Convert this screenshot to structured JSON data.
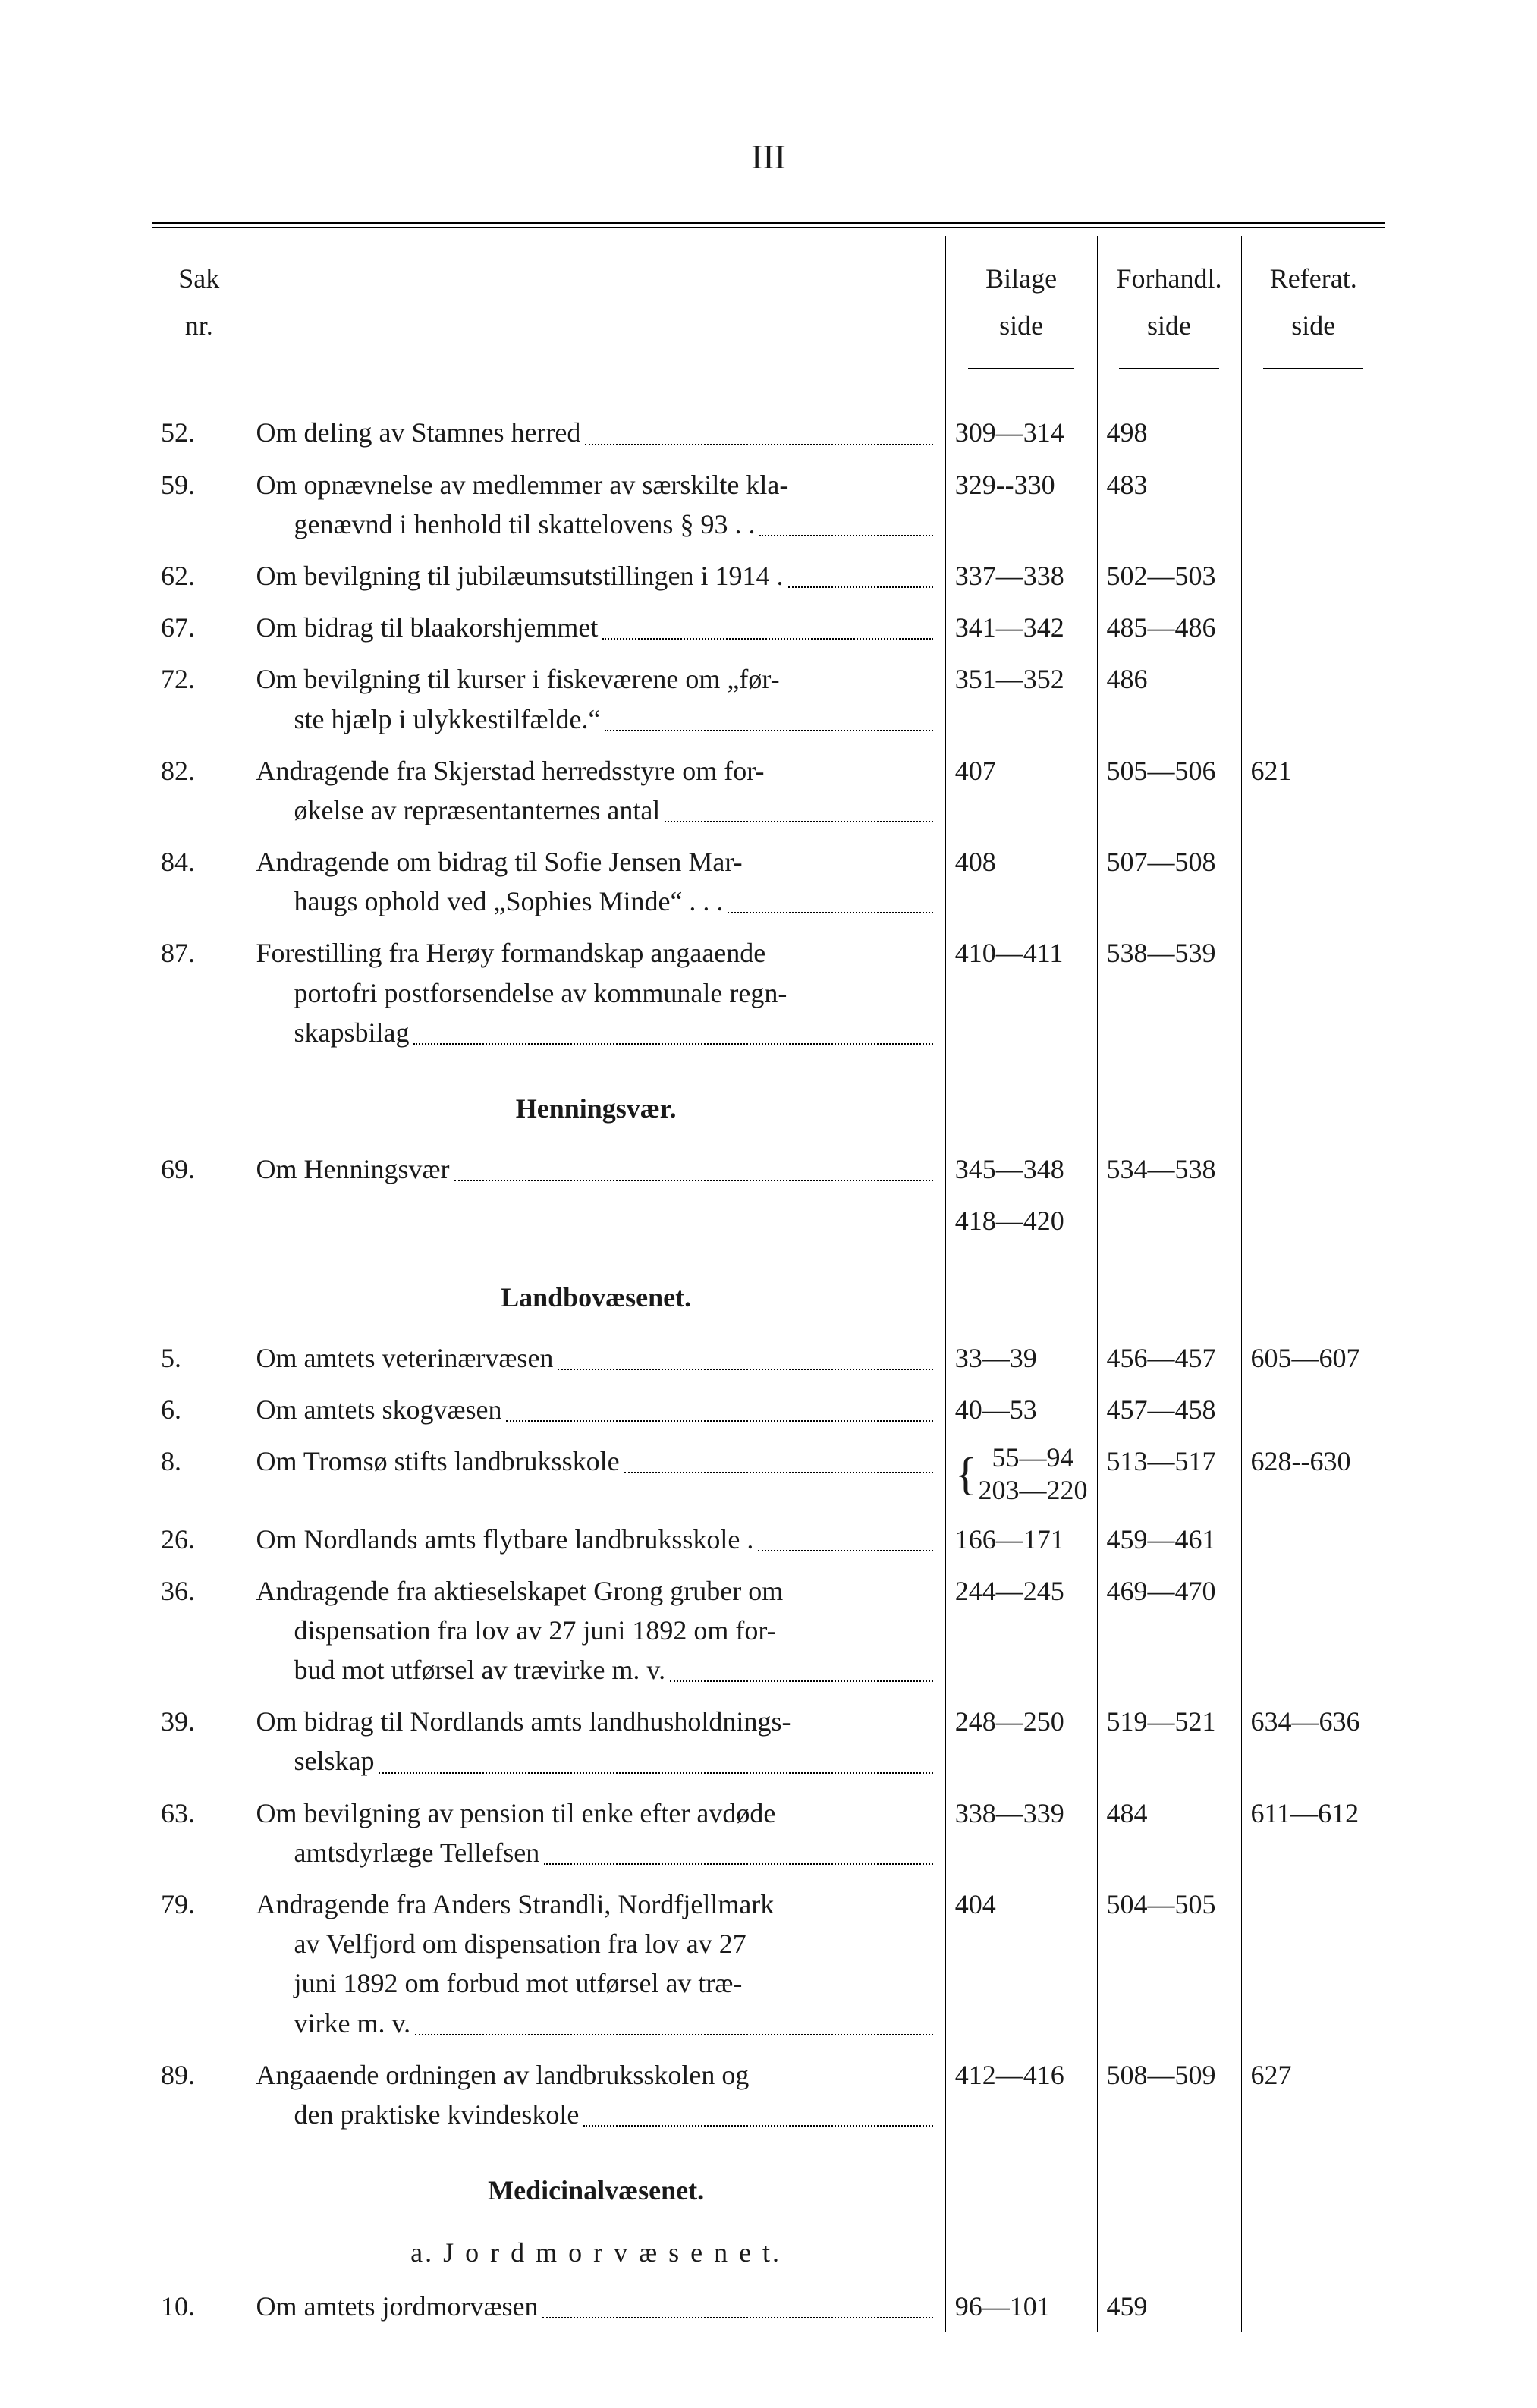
{
  "page_number": "III",
  "columns": {
    "sak": "Sak",
    "nr": "nr.",
    "bilage": "Bilage",
    "bilage_sub": "side",
    "forhandl": "Forhandl.",
    "forhandl_sub": "side",
    "referat": "Referat.",
    "referat_sub": "side"
  },
  "sections": [
    {
      "heading": null,
      "rows": [
        {
          "nr": "52.",
          "text": "Om deling av Stamnes herred",
          "text_cont": null,
          "bilage": "309—314",
          "forh": "498",
          "ref": ""
        },
        {
          "nr": "59.",
          "text": "Om opnævnelse av medlemmer av særskilte kla-",
          "text_cont": "genævnd i henhold til skattelovens § 93 .  .",
          "bilage": "329--330",
          "forh": "483",
          "ref": ""
        },
        {
          "nr": "62.",
          "text": "Om bevilgning til jubilæumsutstillingen i 1914 .",
          "text_cont": null,
          "bilage": "337—338",
          "forh": "502—503",
          "ref": ""
        },
        {
          "nr": "67.",
          "text": "Om bidrag til blaakorshjemmet",
          "text_cont": null,
          "bilage": "341—342",
          "forh": "485—486",
          "ref": ""
        },
        {
          "nr": "72.",
          "text": "Om bevilgning til kurser i fiskeværene om „før-",
          "text_cont": "ste hjælp i ulykkestilfælde.“",
          "bilage": "351—352",
          "forh": "486",
          "ref": ""
        },
        {
          "nr": "82.",
          "text": "Andragende fra Skjerstad herredsstyre om for-",
          "text_cont": "økelse av repræsentanternes antal",
          "bilage": "407",
          "forh": "505—506",
          "ref": "621"
        },
        {
          "nr": "84.",
          "text": "Andragende om bidrag til Sofie Jensen Mar-",
          "text_cont": "haugs ophold ved „Sophies Minde“   .  .  .",
          "bilage": "408",
          "forh": "507—508",
          "ref": ""
        },
        {
          "nr": "87.",
          "text": "Forestilling fra Herøy formandskap angaaende",
          "text_cont": "portofri postforsendelse av kommunale regn-",
          "text_cont2": "skapsbilag",
          "bilage": "410—411",
          "forh": "538—539",
          "ref": ""
        }
      ]
    },
    {
      "heading": "Henningsvær.",
      "rows": [
        {
          "nr": "69.",
          "text": "Om Henningsvær",
          "text_cont": null,
          "bilage": "345—348",
          "bilage2": "418—420",
          "forh": "534—538",
          "ref": ""
        }
      ]
    },
    {
      "heading": "Landbovæsenet.",
      "rows": [
        {
          "nr": "5.",
          "text": "Om amtets veterinærvæsen",
          "text_cont": null,
          "bilage": "33—39",
          "forh": "456—457",
          "ref": "605—607"
        },
        {
          "nr": "6.",
          "text": "Om amtets skogvæsen",
          "text_cont": null,
          "bilage": "40—53",
          "forh": "457—458",
          "ref": ""
        },
        {
          "nr": "8.",
          "text": "Om Tromsø stifts landbruksskole",
          "text_cont": null,
          "bilage_stacked": [
            "55—94",
            "203—220"
          ],
          "forh": "513—517",
          "ref": "628--630"
        },
        {
          "nr": "26.",
          "text": "Om Nordlands amts flytbare landbruksskole   .",
          "text_cont": null,
          "bilage": "166—171",
          "forh": "459—461",
          "ref": ""
        },
        {
          "nr": "36.",
          "text": "Andragende fra aktieselskapet Grong gruber om",
          "text_cont": "dispensation fra lov av 27 juni 1892 om for-",
          "text_cont2": "bud mot utførsel av trævirke m. v.",
          "bilage": "244—245",
          "forh": "469—470",
          "ref": ""
        },
        {
          "nr": "39.",
          "text": "Om bidrag til Nordlands amts landhusholdnings-",
          "text_cont": "selskap",
          "bilage": "248—250",
          "forh": "519—521",
          "ref": "634—636"
        },
        {
          "nr": "63.",
          "text": "Om bevilgning av pension til enke efter avdøde",
          "text_cont": "amtsdyrlæge Tellefsen",
          "bilage": "338—339",
          "forh": "484",
          "ref": "611—612"
        },
        {
          "nr": "79.",
          "text": "Andragende fra Anders Strandli, Nordfjellmark",
          "text_cont": "av Velfjord om dispensation fra lov av 27",
          "text_cont2": "juni 1892 om forbud mot utførsel av træ-",
          "text_cont3": "virke m. v.",
          "bilage": "404",
          "forh": "504—505",
          "ref": ""
        },
        {
          "nr": "89.",
          "text": "Angaaende ordningen av landbruksskolen og",
          "text_cont": "den praktiske kvindeskole",
          "bilage": "412—416",
          "forh": "508—509",
          "ref": "627"
        }
      ]
    },
    {
      "heading": "Medicinalvæsenet.",
      "subheading": "a.  J o r d m o r v æ s e n e t.",
      "rows": [
        {
          "nr": "10.",
          "text": "Om amtets jordmorvæsen",
          "text_cont": null,
          "bilage": "96—101",
          "forh": "459",
          "ref": ""
        }
      ]
    }
  ]
}
